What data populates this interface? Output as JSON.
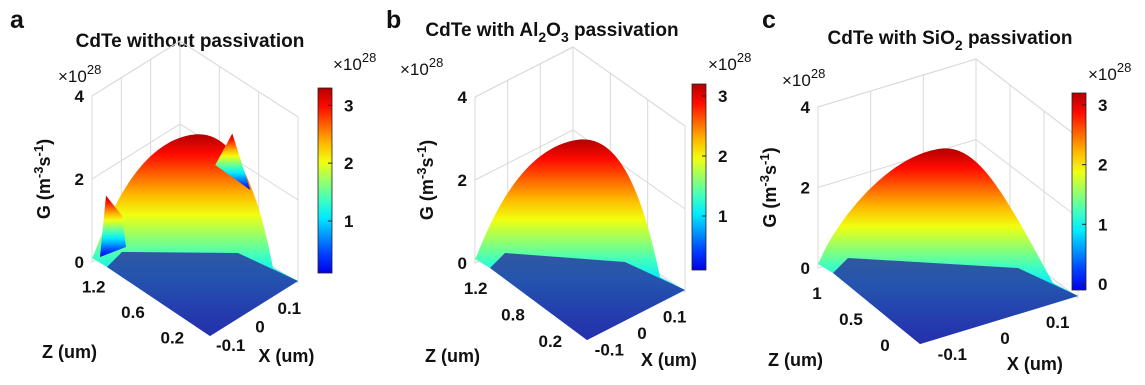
{
  "figure": {
    "panel_count": 3,
    "colormap": "jet"
  },
  "chart_data": [
    {
      "panel_label": "a",
      "type": "surface3d",
      "title_parts": [
        {
          "t": "CdTe without passivation"
        }
      ],
      "zlabel": "G (m-3s-1)",
      "xlabel": "X (um)",
      "ylabel": "Z (um)",
      "z_multiplier": "×10",
      "z_multiplier_exp": "28",
      "z_ticks": [
        "0",
        "2",
        "4"
      ],
      "x_ticks": [
        "-0.1",
        "0",
        "0.1"
      ],
      "y_ticks": [
        "0.2",
        "0.6",
        "1.2"
      ],
      "colorbar_ticks": [
        "1",
        "2",
        "3"
      ],
      "colorbar_multiplier": "×10",
      "colorbar_multiplier_exp": "28",
      "zlim": [
        0,
        4
      ],
      "clim": [
        0.1,
        3.3
      ],
      "peak_value": 3.3,
      "edge_peaks": [
        1.6,
        1.65
      ],
      "grid": true
    },
    {
      "panel_label": "b",
      "type": "surface3d",
      "title_parts": [
        {
          "t": "CdTe with Al"
        },
        {
          "t": "2",
          "sub": true
        },
        {
          "t": "O"
        },
        {
          "t": "3",
          "sub": true
        },
        {
          "t": " passivation"
        }
      ],
      "zlabel": "G (m-3s-1)",
      "xlabel": "X (um)",
      "ylabel": "Z (um)",
      "z_multiplier": "×10",
      "z_multiplier_exp": "28",
      "z_ticks": [
        "0",
        "2",
        "4"
      ],
      "x_ticks": [
        "-0.1",
        "0",
        "0.1"
      ],
      "y_ticks": [
        "0.2",
        "0.8",
        "1.2"
      ],
      "colorbar_ticks": [
        "1",
        "2",
        "3"
      ],
      "colorbar_multiplier": "×10",
      "colorbar_multiplier_exp": "28",
      "zlim": [
        0,
        4
      ],
      "clim": [
        0.1,
        3.2
      ],
      "peak_value": 3.2,
      "grid": true
    },
    {
      "panel_label": "c",
      "type": "surface3d",
      "title_parts": [
        {
          "t": "CdTe with SiO"
        },
        {
          "t": "2",
          "sub": true
        },
        {
          "t": " passivation"
        }
      ],
      "zlabel": "G (m-3s-1)",
      "xlabel": "X (um)",
      "ylabel": "Z (um)",
      "z_multiplier": "×10",
      "z_multiplier_exp": "28",
      "z_ticks": [
        "0",
        "2",
        "4"
      ],
      "x_ticks": [
        "-0.1",
        "0",
        "0.1"
      ],
      "y_ticks": [
        "0",
        "0.5",
        "1"
      ],
      "colorbar_ticks": [
        "0",
        "1",
        "2",
        "3"
      ],
      "colorbar_multiplier": "×10",
      "colorbar_multiplier_exp": "28",
      "zlim": [
        0,
        4
      ],
      "clim": [
        -0.1,
        3.2
      ],
      "peak_value": 3.2,
      "grid": true
    }
  ]
}
